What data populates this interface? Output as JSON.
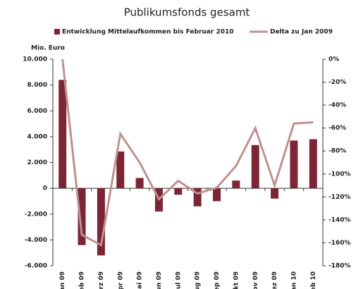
{
  "chart_data": {
    "type": "bar_line",
    "title": "Publikumsfonds gesamt",
    "ylabel": "Mio. Euro",
    "categories": [
      "an 09",
      "eb 09",
      "lrz 09",
      "pr 09",
      "lai 09",
      "un 09",
      "Jul 09",
      "ug 09",
      "ep 09",
      "lkt 09",
      "ov 09",
      "ez 09",
      "an 10",
      "eb 10"
    ],
    "series": [
      {
        "name": "Entwicklung Mittelaufkommen bis Februar 2010",
        "type": "bar",
        "color": "#7b2536",
        "axis": "y",
        "values": [
          8400,
          -4400,
          -5200,
          2850,
          800,
          -1800,
          -500,
          -1400,
          -1000,
          600,
          3350,
          -800,
          3700,
          3800
        ]
      },
      {
        "name": "Delta zu Jan 2009",
        "type": "line",
        "color": "#c09090",
        "axis": "y2",
        "values": [
          0,
          -153,
          -162,
          -65,
          -90,
          -122,
          -106,
          -117,
          -112,
          -93,
          -60,
          -110,
          -56,
          -55
        ]
      }
    ],
    "ylim": [
      -6000,
      10000
    ],
    "yticks": [
      {
        "value": 10000,
        "label": "10.000"
      },
      {
        "value": 8000,
        "label": "8.000"
      },
      {
        "value": 6000,
        "label": "6.000"
      },
      {
        "value": 4000,
        "label": "4.000"
      },
      {
        "value": 2000,
        "label": "2.000"
      },
      0,
      {
        "value": -2000,
        "label": "-2.000"
      },
      {
        "value": -4000,
        "label": "-4.000"
      },
      {
        "value": -6000,
        "label": "-6.000"
      }
    ],
    "y2lim": [
      -180,
      0
    ],
    "y2ticks": [
      {
        "value": 0,
        "label": "0%"
      },
      {
        "value": -20,
        "label": "-20%"
      },
      {
        "value": -40,
        "label": "-40%"
      },
      {
        "value": -60,
        "label": "-60%"
      },
      {
        "value": -80,
        "label": "-80%"
      },
      {
        "value": -100,
        "label": "-100%"
      },
      {
        "value": -120,
        "label": "-120%"
      },
      {
        "value": -140,
        "label": "-140%"
      },
      {
        "value": -160,
        "label": "-160%"
      },
      {
        "value": -180,
        "label": "-180%"
      }
    ]
  }
}
